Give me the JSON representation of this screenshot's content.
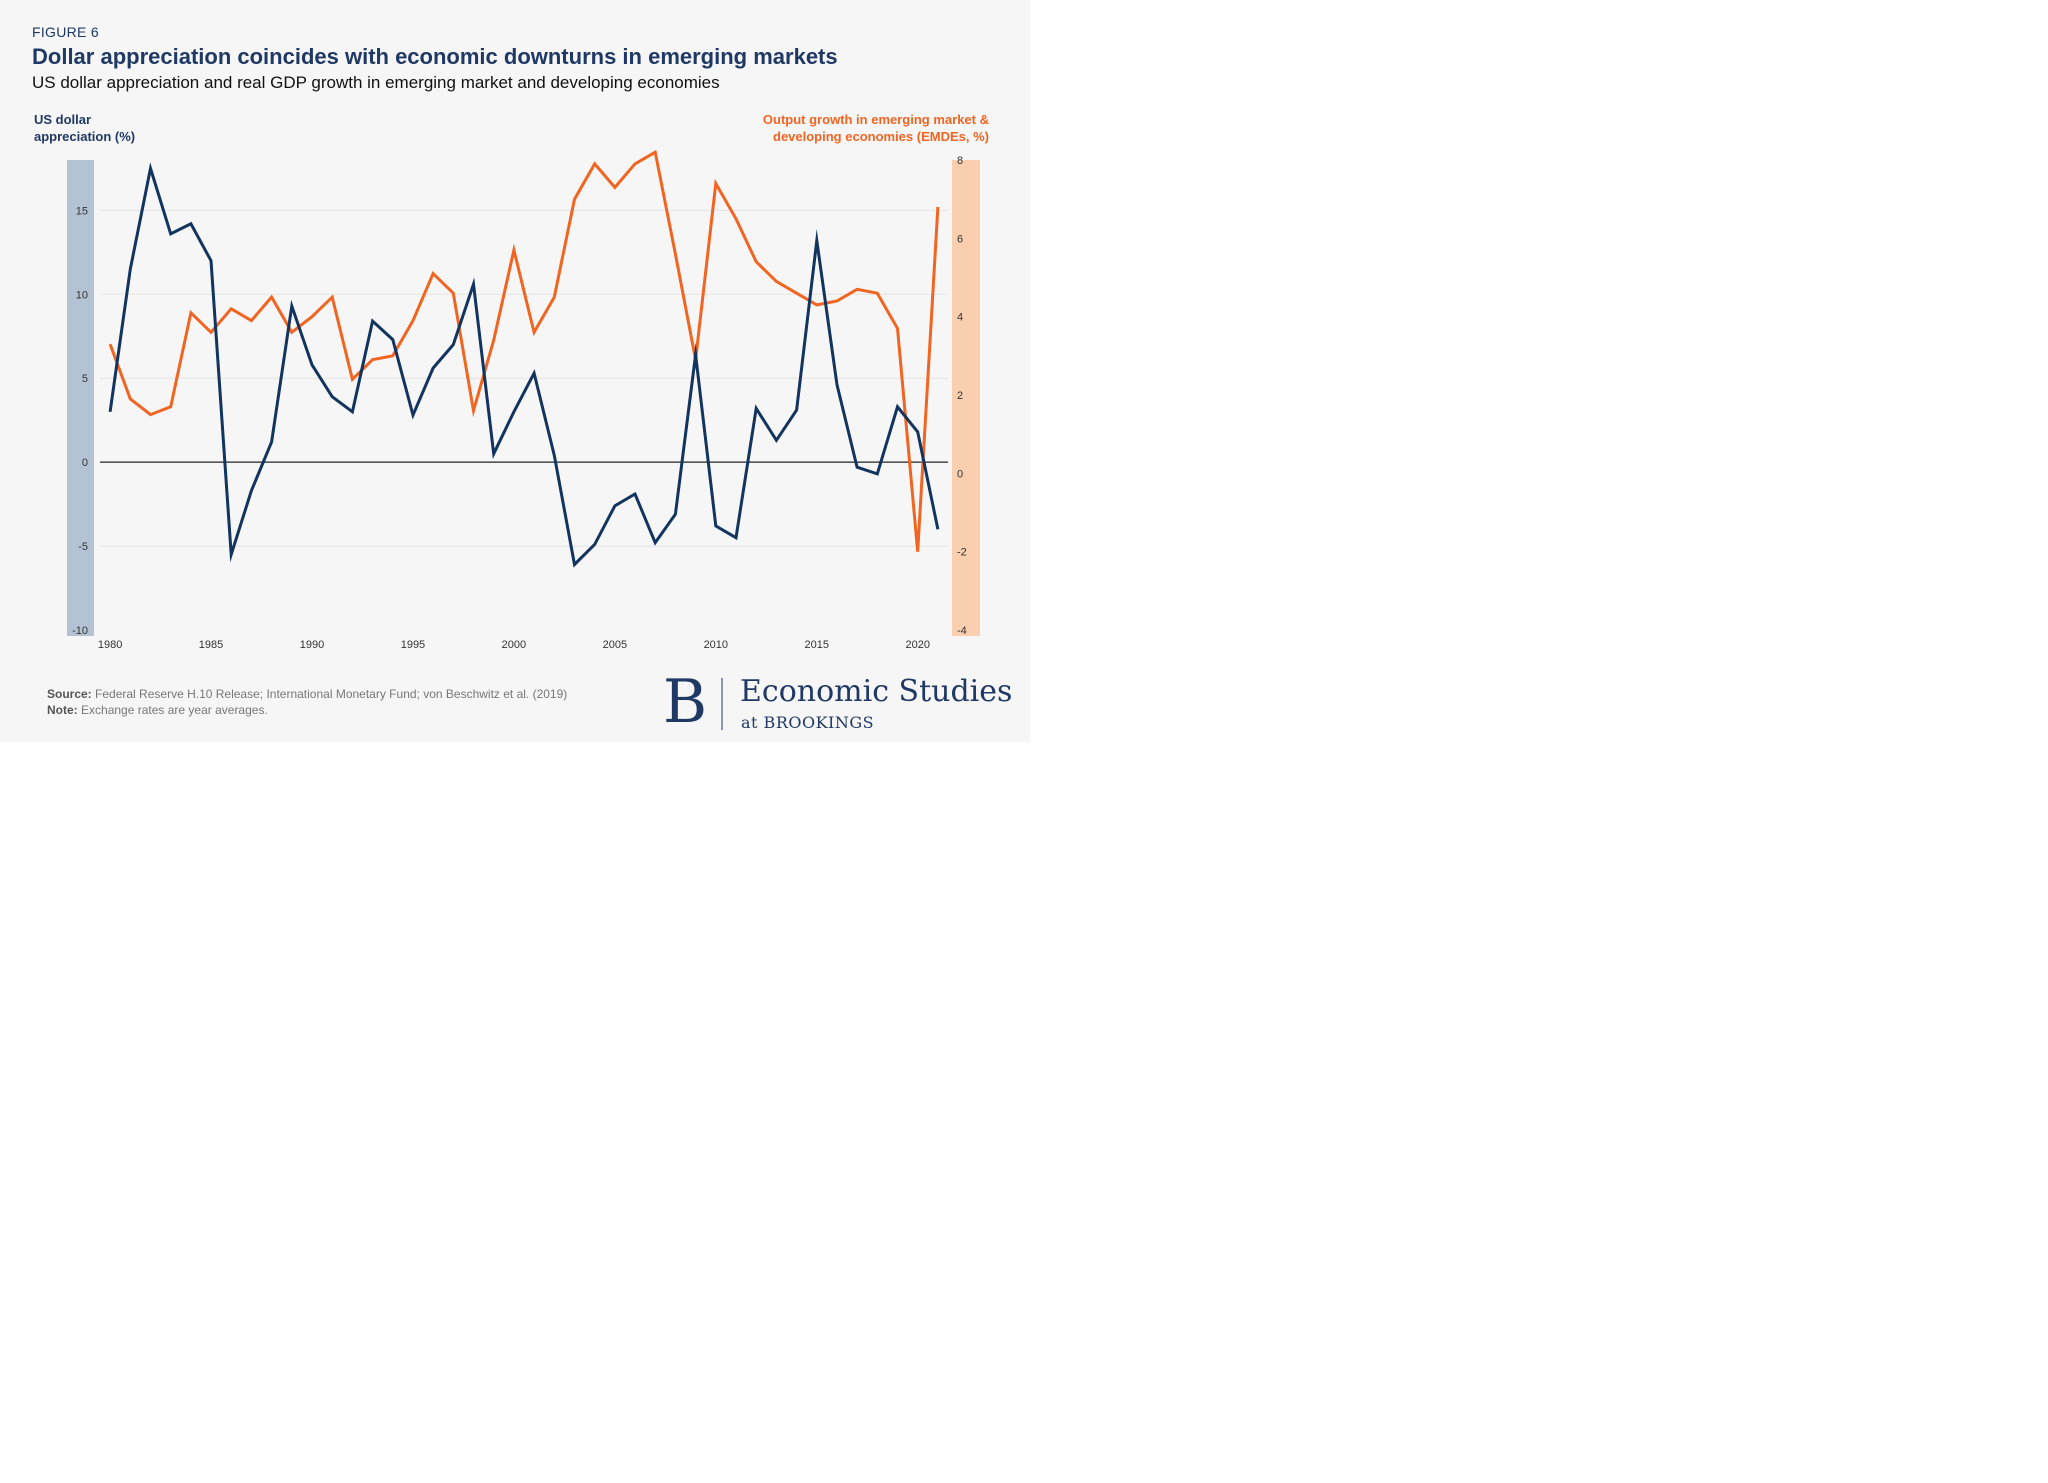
{
  "figure_label": "FIGURE 6",
  "title": "Dollar appreciation coincides with economic downturns in emerging markets",
  "subtitle": "US dollar appreciation and real GDP growth in emerging market and developing economies",
  "source_label": "Source:",
  "source_text": "Federal Reserve H.10 Release; International Monetary Fund; von Beschwitz et al. (2019)",
  "note_label": "Note:",
  "note_text": "Exchange rates are year averages.",
  "logo": {
    "mark": "B",
    "main": "Economic Studies",
    "sub": "at BROOKINGS"
  },
  "colors": {
    "dollar": "#12345f",
    "growth": "#f06522",
    "left_axis_band": "#b3c3d4",
    "right_axis_band": "#f9cfaf",
    "background": "#f6f6f6"
  },
  "chart_data": {
    "type": "line",
    "x": [
      1980,
      1981,
      1982,
      1983,
      1984,
      1985,
      1986,
      1987,
      1988,
      1989,
      1990,
      1991,
      1992,
      1993,
      1994,
      1995,
      1996,
      1997,
      1998,
      1999,
      2000,
      2001,
      2002,
      2003,
      2004,
      2005,
      2006,
      2007,
      2008,
      2009,
      2010,
      2011,
      2012,
      2013,
      2014,
      2015,
      2016,
      2017,
      2018,
      2019,
      2020,
      2021
    ],
    "series": [
      {
        "name": "US dollar appreciation (%)",
        "axis": "left",
        "values": [
          3.0,
          11.5,
          17.5,
          13.6,
          14.2,
          12.0,
          -5.5,
          -1.7,
          1.2,
          9.3,
          5.8,
          3.9,
          3.0,
          8.4,
          7.3,
          2.8,
          5.6,
          7.0,
          10.6,
          0.5,
          3.0,
          5.3,
          0.4,
          -6.1,
          -4.9,
          -2.6,
          -1.9,
          -4.8,
          -3.1,
          6.4,
          -3.8,
          -4.5,
          3.2,
          1.3,
          3.1,
          13.2,
          4.6,
          -0.3,
          -0.7,
          3.3,
          1.8,
          -4.0
        ]
      },
      {
        "name": "Output growth in emerging market & developing economies (EMDEs, %)",
        "axis": "right",
        "values": [
          3.3,
          1.9,
          1.5,
          1.7,
          4.1,
          3.6,
          4.2,
          3.9,
          4.5,
          3.6,
          4.0,
          4.5,
          2.4,
          2.9,
          3.0,
          3.9,
          5.1,
          4.6,
          1.6,
          3.4,
          5.7,
          3.6,
          4.5,
          7.0,
          7.9,
          7.3,
          7.9,
          8.2,
          5.6,
          2.9,
          7.4,
          6.5,
          5.4,
          4.9,
          4.6,
          4.3,
          4.4,
          4.7,
          4.6,
          3.7,
          -2.0,
          6.8
        ]
      }
    ],
    "left_axis": {
      "label_line1": "US dollar",
      "label_line2": "appreciation (%)",
      "ylim": [
        -10,
        18
      ],
      "ticks": [
        15,
        10,
        5,
        0,
        -5,
        -10
      ]
    },
    "right_axis": {
      "label_line1": "Output growth in emerging market &",
      "label_line2": "developing economies (EMDEs, %)",
      "ylim": [
        -4,
        8
      ],
      "ticks": [
        8,
        6,
        4,
        2,
        0,
        -2,
        -4
      ]
    },
    "x_ticks": [
      1980,
      1985,
      1990,
      1995,
      2000,
      2005,
      2010,
      2015,
      2020
    ],
    "xlim": [
      1979.5,
      2021.5
    ],
    "grid": true
  }
}
